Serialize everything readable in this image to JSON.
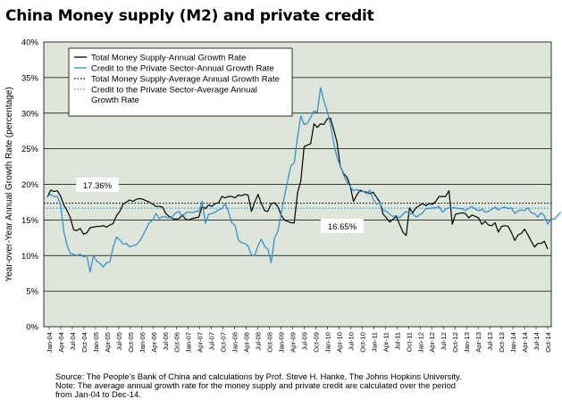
{
  "chart_data": {
    "type": "line",
    "title": "China Money supply (M2) and private credit",
    "ylabel": "Year-over-Year Annual Growth Rate (percentage)",
    "ylim": [
      0,
      40
    ],
    "ytick_labels": [
      "0%",
      "5%",
      "10%",
      "15%",
      "20%",
      "25%",
      "30%",
      "35%",
      "40%"
    ],
    "grid": true,
    "legend_position": "top-right",
    "x_tick_labels": [
      "Jan-04",
      "Apr-04",
      "Jul-04",
      "Oct-04",
      "Jan-05",
      "Apr-05",
      "Jul-05",
      "Oct-05",
      "Jan-06",
      "Apr-06",
      "Jul-06",
      "Oct-06",
      "Jan-07",
      "Apr-07",
      "Jul-07",
      "Oct-07",
      "Jan-08",
      "Apr-08",
      "Jul-08",
      "Oct-08",
      "Jan-09",
      "Apr-09",
      "Jul-09",
      "Oct-09",
      "Jan-10",
      "Apr-10",
      "Jul-10",
      "Oct-10",
      "Jan-11",
      "Apr-11",
      "Jul-11",
      "Oct-11",
      "Jan-12",
      "Apr-12",
      "Jul-12",
      "Oct-12",
      "Jan-13",
      "Apr-13",
      "Jul-13",
      "Oct-13",
      "Jan-14",
      "Apr-14",
      "Jul-14",
      "Oct-14"
    ],
    "series": [
      {
        "name": "Total Money Supply-Annual Growth Rate",
        "color": "#000000",
        "style": "solid",
        "values": [
          18.2,
          19.2,
          19.0,
          19.1,
          18.4,
          17.1,
          16.3,
          15.3,
          13.6,
          13.5,
          13.8,
          13.0,
          13.2,
          13.9,
          14.0,
          14.1,
          14.1,
          14.2,
          14.0,
          14.3,
          14.5,
          15.6,
          16.2,
          17.2,
          17.5,
          17.8,
          17.6,
          17.9,
          18.0,
          17.9,
          17.7,
          17.5,
          17.2,
          16.9,
          16.9,
          16.8,
          15.9,
          15.5,
          15.2,
          15.1,
          15.2,
          15.7,
          15.1,
          15.0,
          15.2,
          15.3,
          15.4,
          16.9,
          16.6,
          17.1,
          16.9,
          17.3,
          17.4,
          18.3,
          18.1,
          18.3,
          18.3,
          18.1,
          18.5,
          18.4,
          18.6,
          18.5,
          16.2,
          17.5,
          18.6,
          17.3,
          16.3,
          16.2,
          17.3,
          17.4,
          16.9,
          15.7,
          15.0,
          14.8,
          14.6,
          14.6,
          18.8,
          20.5,
          25.3,
          25.5,
          25.7,
          28.5,
          28.0,
          28.5,
          28.4,
          29.2,
          29.3,
          27.7,
          25.9,
          22.5,
          21.5,
          21.0,
          19.8,
          17.6,
          18.5,
          19.2,
          19.0,
          18.9,
          18.7,
          18.9,
          18.2,
          17.5,
          15.8,
          15.3,
          14.7,
          15.1,
          15.5,
          14.4,
          13.3,
          12.8,
          16.7,
          16.0,
          16.7,
          17.0,
          17.3,
          17.0,
          17.3,
          17.2,
          17.6,
          18.3,
          18.3,
          18.3,
          19.1,
          14.4,
          15.8,
          15.9,
          16.0,
          15.9,
          15.3,
          15.7,
          15.5,
          15.3,
          14.4,
          14.8,
          14.3,
          14.2,
          14.6,
          13.3,
          14.1,
          14.2,
          14.1,
          13.2,
          12.1,
          12.9,
          13.1,
          13.7,
          12.9,
          12.0,
          11.2,
          11.7,
          11.7,
          12.0,
          10.9
        ]
      },
      {
        "name": "Credit to the Private Sector-Annual Growth Rate",
        "color": "#3a8fd1",
        "style": "solid",
        "values": [
          18.3,
          18.6,
          18.3,
          18.3,
          17.2,
          13.4,
          11.4,
          10.3,
          10.2,
          10.0,
          10.2,
          9.8,
          10.0,
          7.7,
          10.0,
          9.2,
          8.9,
          8.4,
          9.0,
          9.1,
          11.2,
          12.6,
          12.2,
          11.6,
          11.7,
          11.2,
          11.4,
          11.5,
          12.0,
          12.8,
          13.7,
          14.6,
          15.0,
          15.9,
          15.2,
          15.5,
          15.4,
          15.3,
          15.5,
          16.0,
          16.2,
          15.4,
          16.0,
          16.1,
          16.0,
          16.2,
          16.2,
          17.6,
          14.5,
          15.8,
          15.9,
          16.1,
          16.4,
          16.6,
          17.3,
          16.2,
          14.6,
          14.3,
          12.2,
          11.8,
          11.7,
          11.3,
          10.1,
          10.0,
          11.4,
          12.3,
          11.3,
          10.9,
          9.0,
          12.4,
          13.4,
          15.8,
          18.3,
          20.5,
          22.6,
          23.0,
          26.7,
          29.6,
          28.4,
          28.6,
          29.4,
          30.3,
          30.1,
          33.6,
          31.7,
          30.3,
          28.5,
          25.8,
          23.8,
          22.6,
          21.3,
          20.3,
          19.7,
          19.1,
          19.3,
          19.0,
          19.0,
          18.7,
          19.2,
          17.9,
          17.2,
          17.4,
          16.4,
          16.2,
          15.8,
          15.5,
          15.6,
          15.3,
          15.8,
          16.2,
          15.8,
          15.9,
          15.4,
          15.7,
          16.0,
          16.6,
          16.6,
          16.7,
          16.7,
          16.9,
          16.1,
          16.5,
          16.7,
          16.7,
          16.7,
          16.6,
          16.6,
          16.3,
          16.6,
          16.9,
          16.5,
          16.3,
          16.5,
          16.1,
          16.2,
          16.5,
          16.8,
          16.4,
          16.7,
          16.8,
          16.6,
          16.7,
          15.9,
          16.3,
          16.4,
          16.3,
          16.7,
          16.0,
          15.9,
          15.4,
          16.0,
          15.6,
          14.4,
          15.2,
          15.1,
          15.6,
          16.1
        ]
      },
      {
        "name": "Total Money Supply-Average Annual Growth Rate",
        "color": "#000000",
        "style": "dotted",
        "average": 17.36,
        "label": "17.36%"
      },
      {
        "name": "Credit to the Private Sector-Average Annual Growth Rate",
        "color": "#3a8fd1",
        "style": "dotted",
        "average": 16.65,
        "label": "16.65%"
      }
    ]
  },
  "source_lines": [
    "Source: The People's Bank of China and calculations by Prof. Steve H. Hanke,  The Johns Hopkins University.",
    "Note: The average annual growth rate for the money supply and private credit are calculated over the period",
    "from Jan-04 to Dec-14."
  ]
}
